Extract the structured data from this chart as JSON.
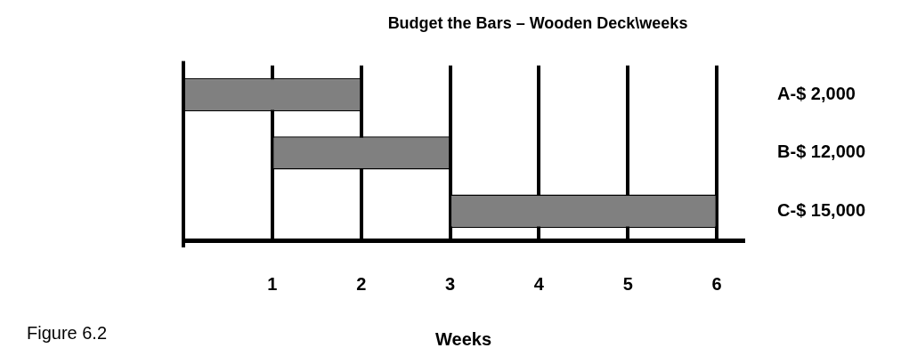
{
  "chart_data": {
    "type": "bar",
    "orientation": "horizontal",
    "title": "Budget the Bars – Wooden Deck\\weeks",
    "xlabel": "Weeks",
    "categories": [
      "A-$ 2,000",
      "B-$ 12,000",
      "C-$ 15,000"
    ],
    "base": [
      0,
      1,
      3
    ],
    "values": [
      2,
      2,
      3
    ],
    "color": "#808080",
    "xlim": [
      0,
      6.3
    ],
    "xticks": [
      1,
      2,
      3,
      4,
      5,
      6
    ],
    "grid": "x",
    "annotations": [
      "Figure 6.2"
    ]
  }
}
